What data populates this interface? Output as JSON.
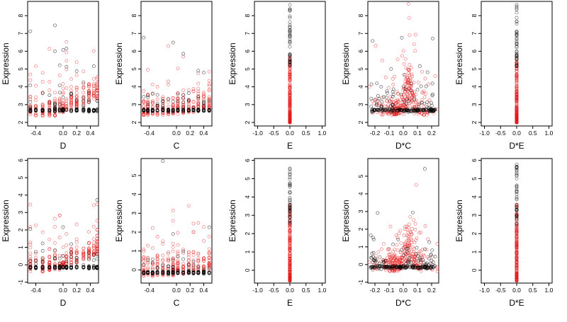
{
  "chart_data": [
    {
      "type": "scatter",
      "row": 0,
      "col": 0,
      "xlabel": "D",
      "ylabel": "Expression",
      "xlim": [
        -0.52,
        0.52
      ],
      "ylim": [
        1.8,
        8.8
      ],
      "xticks": [
        -0.4,
        0.0,
        0.2,
        0.4
      ],
      "yticks": [
        2,
        3,
        4,
        5,
        6,
        7,
        8
      ],
      "x_kind": "discrete",
      "x_levels": [
        -0.48,
        -0.4,
        -0.3,
        -0.2,
        -0.12,
        -0.05,
        0.0,
        0.05,
        0.12,
        0.2,
        0.3,
        0.38,
        0.45,
        0.5
      ],
      "black_base": 2.68,
      "black_scale": 0.6,
      "red_base": 2.35,
      "red_trend": 1.6,
      "red_scale": 0.55,
      "n_black": 180,
      "n_red": 260,
      "series": [
        {
          "color": "#000000"
        },
        {
          "color": "#e31a1c"
        }
      ]
    },
    {
      "type": "scatter",
      "row": 0,
      "col": 1,
      "xlabel": "C",
      "ylabel": "Expression",
      "xlim": [
        -0.52,
        0.52
      ],
      "ylim": [
        1.8,
        8.8
      ],
      "xticks": [
        -0.4,
        0.0,
        0.2,
        0.4
      ],
      "yticks": [
        2,
        3,
        4,
        5,
        6,
        7,
        8
      ],
      "x_kind": "discrete",
      "x_levels": [
        -0.48,
        -0.42,
        -0.35,
        -0.28,
        -0.2,
        -0.12,
        -0.05,
        0.02,
        0.1,
        0.18,
        0.25,
        0.32,
        0.4,
        0.48
      ],
      "black_base": 2.68,
      "black_scale": 0.5,
      "red_base": 2.4,
      "red_trend": 0.5,
      "red_scale": 0.55,
      "n_black": 180,
      "n_red": 260,
      "series": [
        {
          "color": "#000000"
        },
        {
          "color": "#e31a1c"
        }
      ]
    },
    {
      "type": "scatter",
      "row": 0,
      "col": 2,
      "xlabel": "E",
      "ylabel": "Expression",
      "xlim": [
        -1.1,
        1.1
      ],
      "ylim": [
        1.8,
        8.8
      ],
      "xticks": [
        -1.0,
        -0.5,
        0.0,
        0.5,
        1.0
      ],
      "yticks": [
        2,
        3,
        4,
        5,
        6,
        7,
        8
      ],
      "x_kind": "zero",
      "red_min": 2.0,
      "red_max": 5.8,
      "black_min": 5.0,
      "black_max": 8.7,
      "n_black": 40,
      "n_red": 220,
      "series": [
        {
          "color": "#000000"
        },
        {
          "color": "#e31a1c"
        }
      ]
    },
    {
      "type": "scatter",
      "row": 0,
      "col": 3,
      "xlabel": "D*C",
      "ylabel": "Expression",
      "xlim": [
        -0.25,
        0.25
      ],
      "ylim": [
        1.8,
        8.8
      ],
      "xticks": [
        -0.2,
        -0.1,
        0.0,
        0.1,
        0.2
      ],
      "yticks": [
        2,
        3,
        4,
        5,
        6,
        7,
        8
      ],
      "x_kind": "continuous",
      "x_spread": 0.09,
      "black_base": 2.68,
      "black_scale": 0.6,
      "red_base": 2.4,
      "red_trend": 2.2,
      "red_scale": 0.55,
      "n_black": 200,
      "n_red": 300,
      "series": [
        {
          "color": "#000000"
        },
        {
          "color": "#e31a1c"
        }
      ]
    },
    {
      "type": "scatter",
      "row": 0,
      "col": 4,
      "xlabel": "D*E",
      "ylabel": "Expression",
      "xlim": [
        -1.1,
        1.1
      ],
      "ylim": [
        1.8,
        8.8
      ],
      "xticks": [
        -1.0,
        -0.5,
        0.0,
        0.5,
        1.0
      ],
      "yticks": [
        2,
        3,
        4,
        5,
        6,
        7,
        8
      ],
      "x_kind": "zero",
      "red_min": 2.0,
      "red_max": 5.8,
      "black_min": 5.0,
      "black_max": 8.7,
      "n_black": 40,
      "n_red": 220,
      "series": [
        {
          "color": "#000000"
        },
        {
          "color": "#e31a1c"
        }
      ]
    },
    {
      "type": "scatter",
      "row": 1,
      "col": 0,
      "xlabel": "D",
      "ylabel": "Expression",
      "xlim": [
        -0.52,
        0.52
      ],
      "ylim": [
        -1.05,
        6.1
      ],
      "xticks": [
        -0.4,
        0.0,
        0.2,
        0.4
      ],
      "yticks": [
        -1,
        0,
        1,
        2,
        3,
        4,
        5,
        6
      ],
      "x_kind": "discrete",
      "x_levels": [
        -0.48,
        -0.4,
        -0.3,
        -0.2,
        -0.12,
        -0.05,
        0.0,
        0.05,
        0.12,
        0.2,
        0.3,
        0.38,
        0.45,
        0.5
      ],
      "black_base": -0.15,
      "black_scale": 0.55,
      "red_base": -0.4,
      "red_trend": 1.6,
      "red_scale": 0.55,
      "n_black": 180,
      "n_red": 260,
      "series": [
        {
          "color": "#000000"
        },
        {
          "color": "#e31a1c"
        }
      ]
    },
    {
      "type": "scatter",
      "row": 1,
      "col": 1,
      "xlabel": "C",
      "ylabel": "Expression",
      "xlim": [
        -0.52,
        0.52
      ],
      "ylim": [
        -0.7,
        5.9
      ],
      "xticks": [
        -0.4,
        0.0,
        0.2,
        0.4
      ],
      "yticks": [
        0,
        1,
        2,
        3,
        4,
        5
      ],
      "x_kind": "discrete",
      "x_levels": [
        -0.48,
        -0.42,
        -0.35,
        -0.28,
        -0.2,
        -0.12,
        -0.05,
        0.02,
        0.1,
        0.18,
        0.25,
        0.32,
        0.4,
        0.48
      ],
      "black_base": -0.15,
      "black_scale": 0.5,
      "red_base": -0.35,
      "red_trend": 0.5,
      "red_scale": 0.55,
      "n_black": 180,
      "n_red": 260,
      "series": [
        {
          "color": "#000000"
        },
        {
          "color": "#e31a1c"
        }
      ]
    },
    {
      "type": "scatter",
      "row": 1,
      "col": 2,
      "xlabel": "E",
      "ylabel": "Expression",
      "xlim": [
        -1.1,
        1.1
      ],
      "ylim": [
        -0.7,
        6.1
      ],
      "xticks": [
        -1.0,
        -0.5,
        0.0,
        0.5,
        1.0
      ],
      "yticks": [
        0,
        1,
        2,
        3,
        4,
        5,
        6
      ],
      "x_kind": "zero",
      "red_min": -0.6,
      "red_max": 3.6,
      "black_min": 2.5,
      "black_max": 5.8,
      "n_black": 40,
      "n_red": 220,
      "series": [
        {
          "color": "#000000"
        },
        {
          "color": "#e31a1c"
        }
      ]
    },
    {
      "type": "scatter",
      "row": 1,
      "col": 3,
      "xlabel": "D*C",
      "ylabel": "Expression",
      "xlim": [
        -0.25,
        0.25
      ],
      "ylim": [
        -1.05,
        6.0
      ],
      "xticks": [
        -0.2,
        -0.1,
        0.0,
        0.1,
        0.2
      ],
      "yticks": [
        -1,
        0,
        1,
        2,
        3,
        4,
        5
      ],
      "x_kind": "continuous",
      "x_spread": 0.09,
      "black_base": -0.15,
      "black_scale": 0.6,
      "red_base": -0.4,
      "red_trend": 2.0,
      "red_scale": 0.55,
      "n_black": 200,
      "n_red": 300,
      "series": [
        {
          "color": "#000000"
        },
        {
          "color": "#e31a1c"
        }
      ]
    },
    {
      "type": "scatter",
      "row": 1,
      "col": 4,
      "xlabel": "D*E",
      "ylabel": "Expression",
      "xlim": [
        -1.1,
        1.1
      ],
      "ylim": [
        -0.7,
        6.1
      ],
      "xticks": [
        -1.0,
        -0.5,
        0.0,
        0.5,
        1.0
      ],
      "yticks": [
        0,
        1,
        2,
        3,
        4,
        5,
        6
      ],
      "x_kind": "zero",
      "red_min": -0.6,
      "red_max": 3.6,
      "black_min": 2.5,
      "black_max": 5.8,
      "n_black": 40,
      "n_red": 220,
      "series": [
        {
          "color": "#000000"
        },
        {
          "color": "#e31a1c"
        }
      ]
    }
  ]
}
